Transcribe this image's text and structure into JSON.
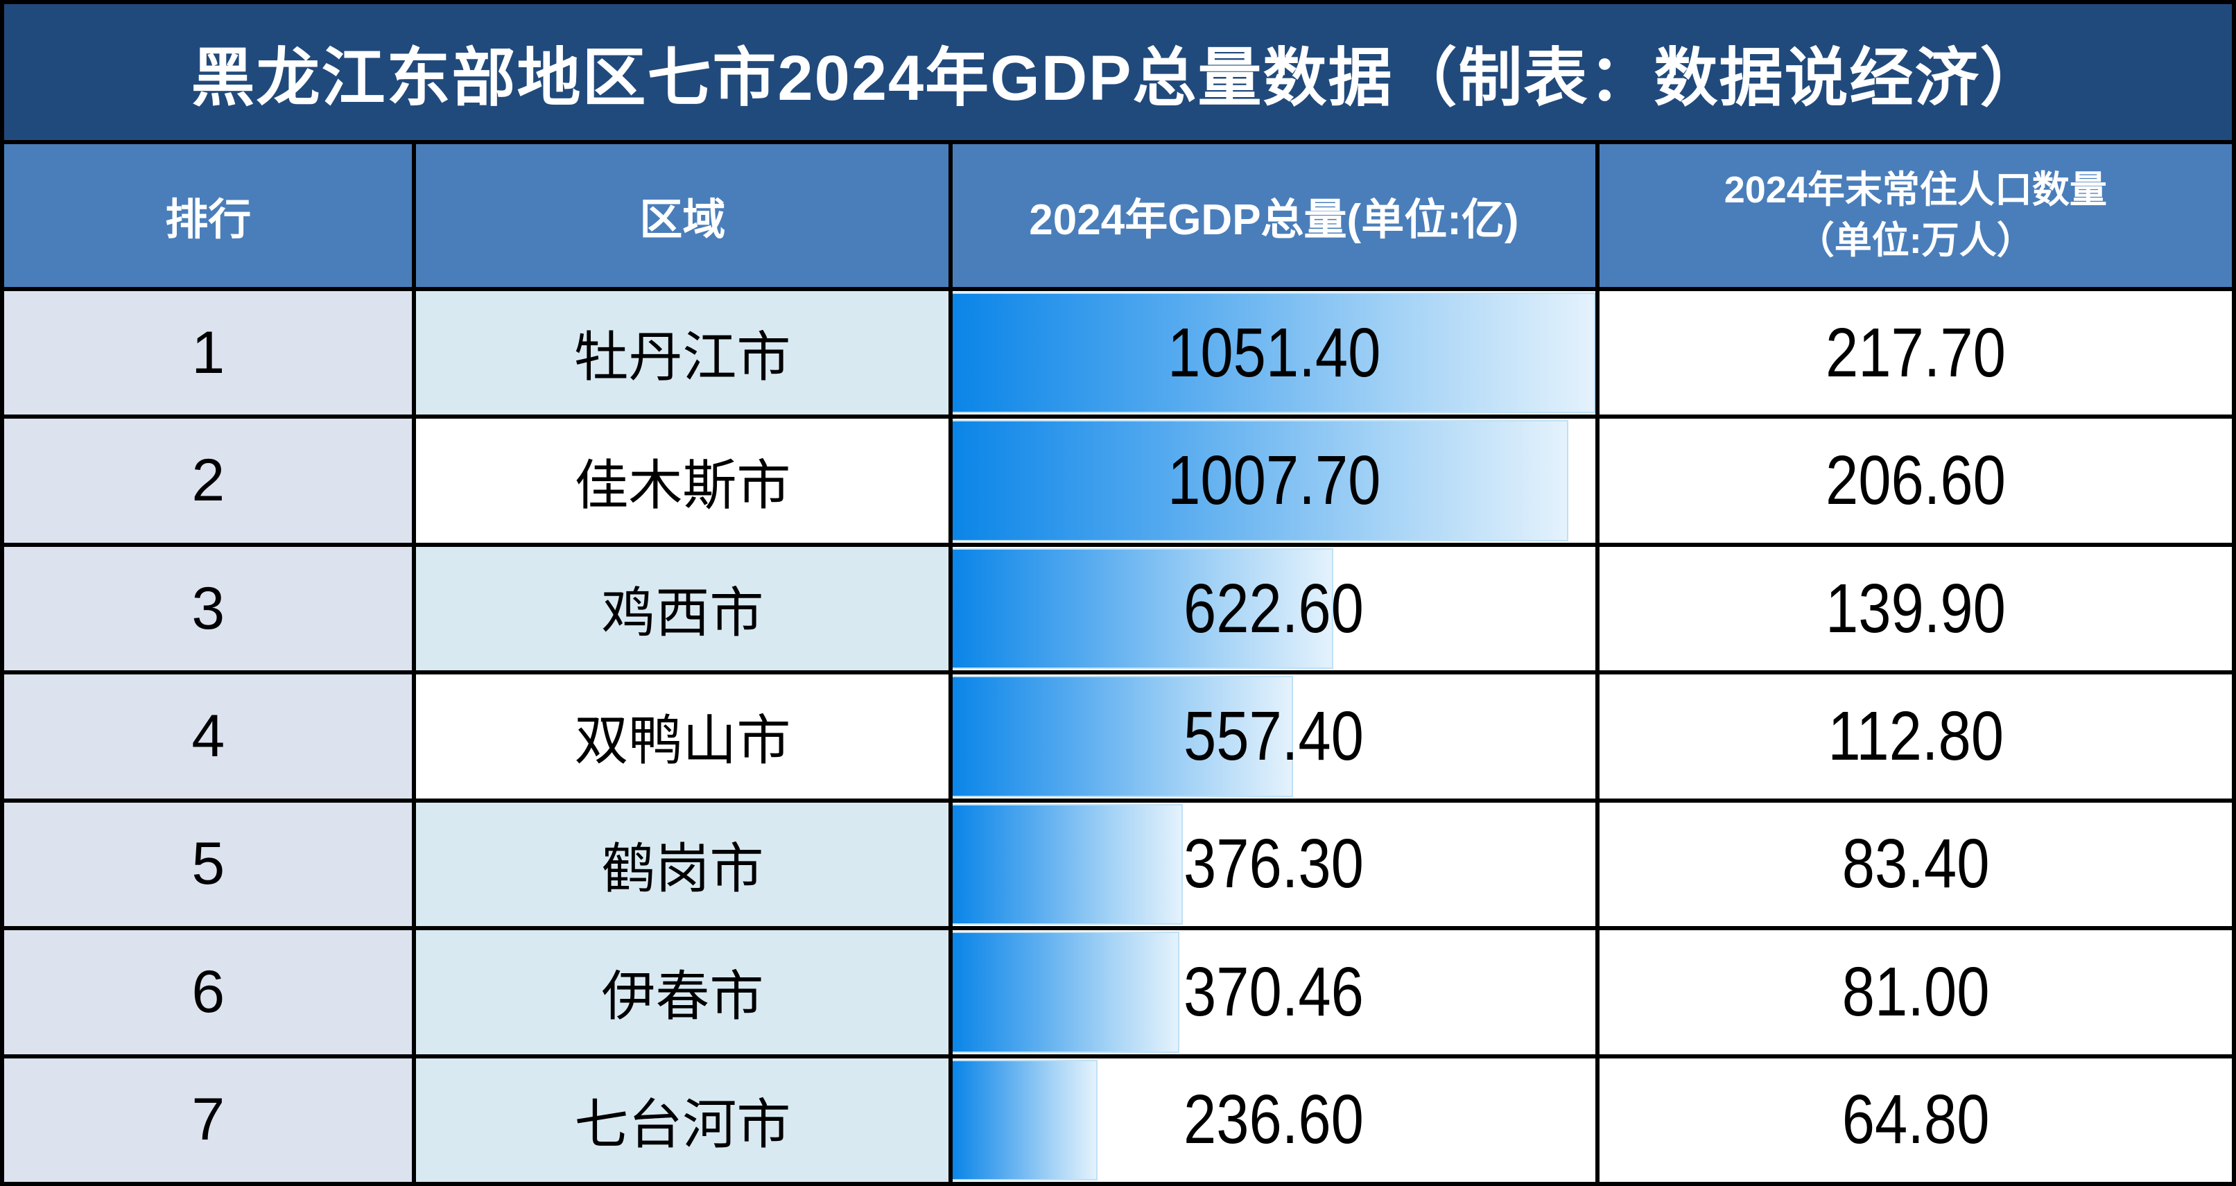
{
  "title": "黑龙江东部地区七市2024年GDP总量数据（制表：数据说经济）",
  "table": {
    "headers": {
      "rank": "排行",
      "region": "区域",
      "gdp": "2024年GDP总量(单位:亿)",
      "population_line1": "2024年末常住人口数量",
      "population_line2": "（单位:万人）"
    },
    "rows": [
      {
        "rank": "1",
        "region": "牡丹江市",
        "gdp_label": "1051.40",
        "gdp_value": 1051.4,
        "population": "217.70",
        "region_tinted": true
      },
      {
        "rank": "2",
        "region": "佳木斯市",
        "gdp_label": "1007.70",
        "gdp_value": 1007.7,
        "population": "206.60",
        "region_tinted": false
      },
      {
        "rank": "3",
        "region": "鸡西市",
        "gdp_label": "622.60",
        "gdp_value": 622.6,
        "population": "139.90",
        "region_tinted": true
      },
      {
        "rank": "4",
        "region": "双鸭山市",
        "gdp_label": "557.40",
        "gdp_value": 557.4,
        "population": "112.80",
        "region_tinted": false
      },
      {
        "rank": "5",
        "region": "鹤岗市",
        "gdp_label": "376.30",
        "gdp_value": 376.3,
        "population": "83.40",
        "region_tinted": true
      },
      {
        "rank": "6",
        "region": "伊春市",
        "gdp_label": "370.46",
        "gdp_value": 370.46,
        "population": "81.00",
        "region_tinted": true
      },
      {
        "rank": "7",
        "region": "七台河市",
        "gdp_label": "236.60",
        "gdp_value": 236.6,
        "population": "64.80",
        "region_tinted": true
      }
    ]
  },
  "chart_data": {
    "type": "table",
    "title": "黑龙江东部地区七市2024年GDP总量数据（制表：数据说经济）",
    "columns": [
      "排行",
      "区域",
      "2024年GDP总量(单位:亿)",
      "2024年末常住人口数量（单位:万人）"
    ],
    "categories": [
      "牡丹江市",
      "佳木斯市",
      "鸡西市",
      "双鸭山市",
      "鹤岗市",
      "伊春市",
      "七台河市"
    ],
    "series": [
      {
        "name": "2024年GDP总量(单位:亿)",
        "values": [
          1051.4,
          1007.7,
          622.6,
          557.4,
          376.3,
          370.46,
          236.6
        ],
        "display": "in-cell gradient data bars scaled to max value"
      },
      {
        "name": "2024年末常住人口数量（单位:万人）",
        "values": [
          217.7,
          206.6,
          139.9,
          112.8,
          83.4,
          81.0,
          64.8
        ]
      }
    ],
    "bar_scale_max": 1051.4,
    "layout": {
      "grid": "black cell borders",
      "bar_column": 3,
      "tinted_region_rows": [
        1,
        3,
        5,
        6,
        7
      ]
    }
  },
  "colors": {
    "title_bg": "#214A7C",
    "header_bg": "#4A7EBA",
    "rank_col_bg": "#DCE3EF",
    "region_tint_bg": "#D9E9F2",
    "cell_white": "#FFFFFF",
    "border": "#000000",
    "bar_gradient_start": "#0A85E8",
    "bar_gradient_end": "#E4F2FC",
    "bar_border": "#BFE0F5",
    "header_text": "#FFFFFF",
    "body_text": "#000000"
  }
}
